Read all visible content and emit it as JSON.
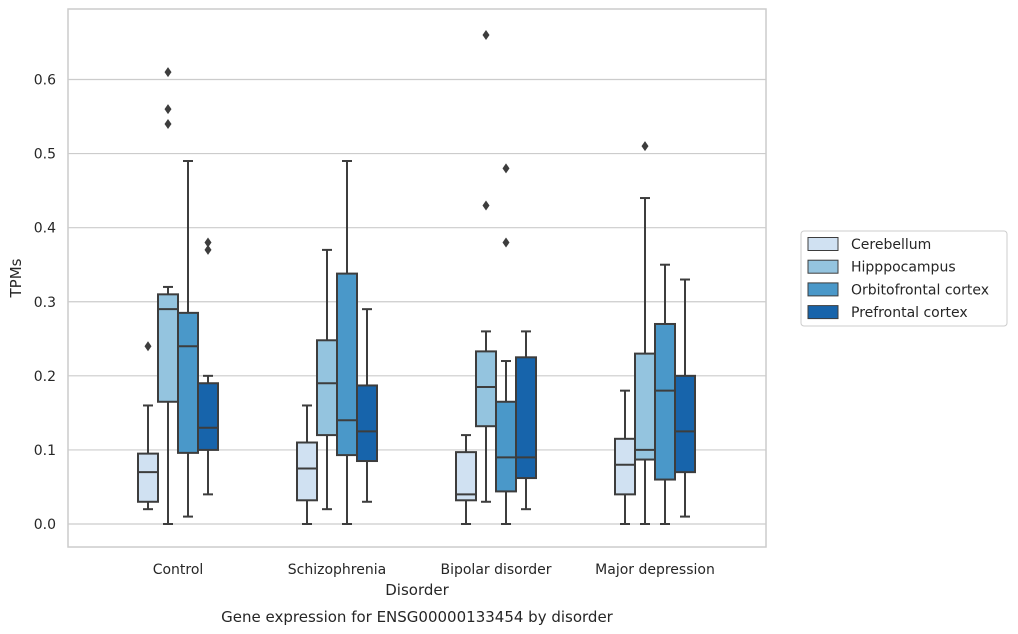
{
  "chart_data": {
    "type": "box",
    "title": "Gene expression for ENSG00000133454 by disorder",
    "xlabel": "Disorder",
    "ylabel": "TPMs",
    "ylim": [
      -0.032,
      0.695
    ],
    "yticks": [
      0.0,
      0.1,
      0.2,
      0.3,
      0.4,
      0.5,
      0.6
    ],
    "ytick_labels": [
      "0.0",
      "0.1",
      "0.2",
      "0.3",
      "0.4",
      "0.5",
      "0.6"
    ],
    "grid": true,
    "legend_position": "right",
    "categories": [
      "Control",
      "Schizophrenia",
      "Bipolar disorder",
      "Major depression"
    ],
    "series": [
      {
        "name": "Cerebellum",
        "color": "#d0e1f2",
        "boxes": [
          {
            "whisker_low": 0.02,
            "q1": 0.03,
            "median": 0.07,
            "q3": 0.095,
            "whisker_high": 0.16,
            "outliers": [
              0.24
            ]
          },
          {
            "whisker_low": 0.0,
            "q1": 0.032,
            "median": 0.075,
            "q3": 0.11,
            "whisker_high": 0.16,
            "outliers": []
          },
          {
            "whisker_low": 0.0,
            "q1": 0.032,
            "median": 0.04,
            "q3": 0.097,
            "whisker_high": 0.12,
            "outliers": []
          },
          {
            "whisker_low": 0.0,
            "q1": 0.04,
            "median": 0.08,
            "q3": 0.115,
            "whisker_high": 0.18,
            "outliers": []
          }
        ]
      },
      {
        "name": "Hipppocampus",
        "color": "#94c4df",
        "boxes": [
          {
            "whisker_low": 0.0,
            "q1": 0.165,
            "median": 0.29,
            "q3": 0.31,
            "whisker_high": 0.32,
            "outliers": [
              0.54,
              0.56,
              0.61
            ]
          },
          {
            "whisker_low": 0.02,
            "q1": 0.12,
            "median": 0.19,
            "q3": 0.248,
            "whisker_high": 0.37,
            "outliers": []
          },
          {
            "whisker_low": 0.03,
            "q1": 0.132,
            "median": 0.185,
            "q3": 0.233,
            "whisker_high": 0.26,
            "outliers": [
              0.43,
              0.66
            ]
          },
          {
            "whisker_low": 0.0,
            "q1": 0.087,
            "median": 0.1,
            "q3": 0.23,
            "whisker_high": 0.44,
            "outliers": [
              0.51
            ]
          }
        ]
      },
      {
        "name": "Orbitofrontal cortex",
        "color": "#4a98c9",
        "boxes": [
          {
            "whisker_low": 0.01,
            "q1": 0.096,
            "median": 0.24,
            "q3": 0.285,
            "whisker_high": 0.49,
            "outliers": []
          },
          {
            "whisker_low": 0.0,
            "q1": 0.093,
            "median": 0.14,
            "q3": 0.338,
            "whisker_high": 0.49,
            "outliers": []
          },
          {
            "whisker_low": 0.0,
            "q1": 0.044,
            "median": 0.09,
            "q3": 0.165,
            "whisker_high": 0.22,
            "outliers": [
              0.38,
              0.48
            ]
          },
          {
            "whisker_low": 0.0,
            "q1": 0.06,
            "median": 0.18,
            "q3": 0.27,
            "whisker_high": 0.35,
            "outliers": []
          }
        ]
      },
      {
        "name": "Prefrontal cortex",
        "color": "#1764ab",
        "boxes": [
          {
            "whisker_low": 0.04,
            "q1": 0.1,
            "median": 0.13,
            "q3": 0.19,
            "whisker_high": 0.2,
            "outliers": [
              0.37,
              0.38
            ]
          },
          {
            "whisker_low": 0.03,
            "q1": 0.085,
            "median": 0.125,
            "q3": 0.187,
            "whisker_high": 0.29,
            "outliers": []
          },
          {
            "whisker_low": 0.02,
            "q1": 0.062,
            "median": 0.09,
            "q3": 0.225,
            "whisker_high": 0.26,
            "outliers": []
          },
          {
            "whisker_low": 0.01,
            "q1": 0.07,
            "median": 0.125,
            "q3": 0.2,
            "whisker_high": 0.33,
            "outliers": []
          }
        ]
      }
    ]
  }
}
